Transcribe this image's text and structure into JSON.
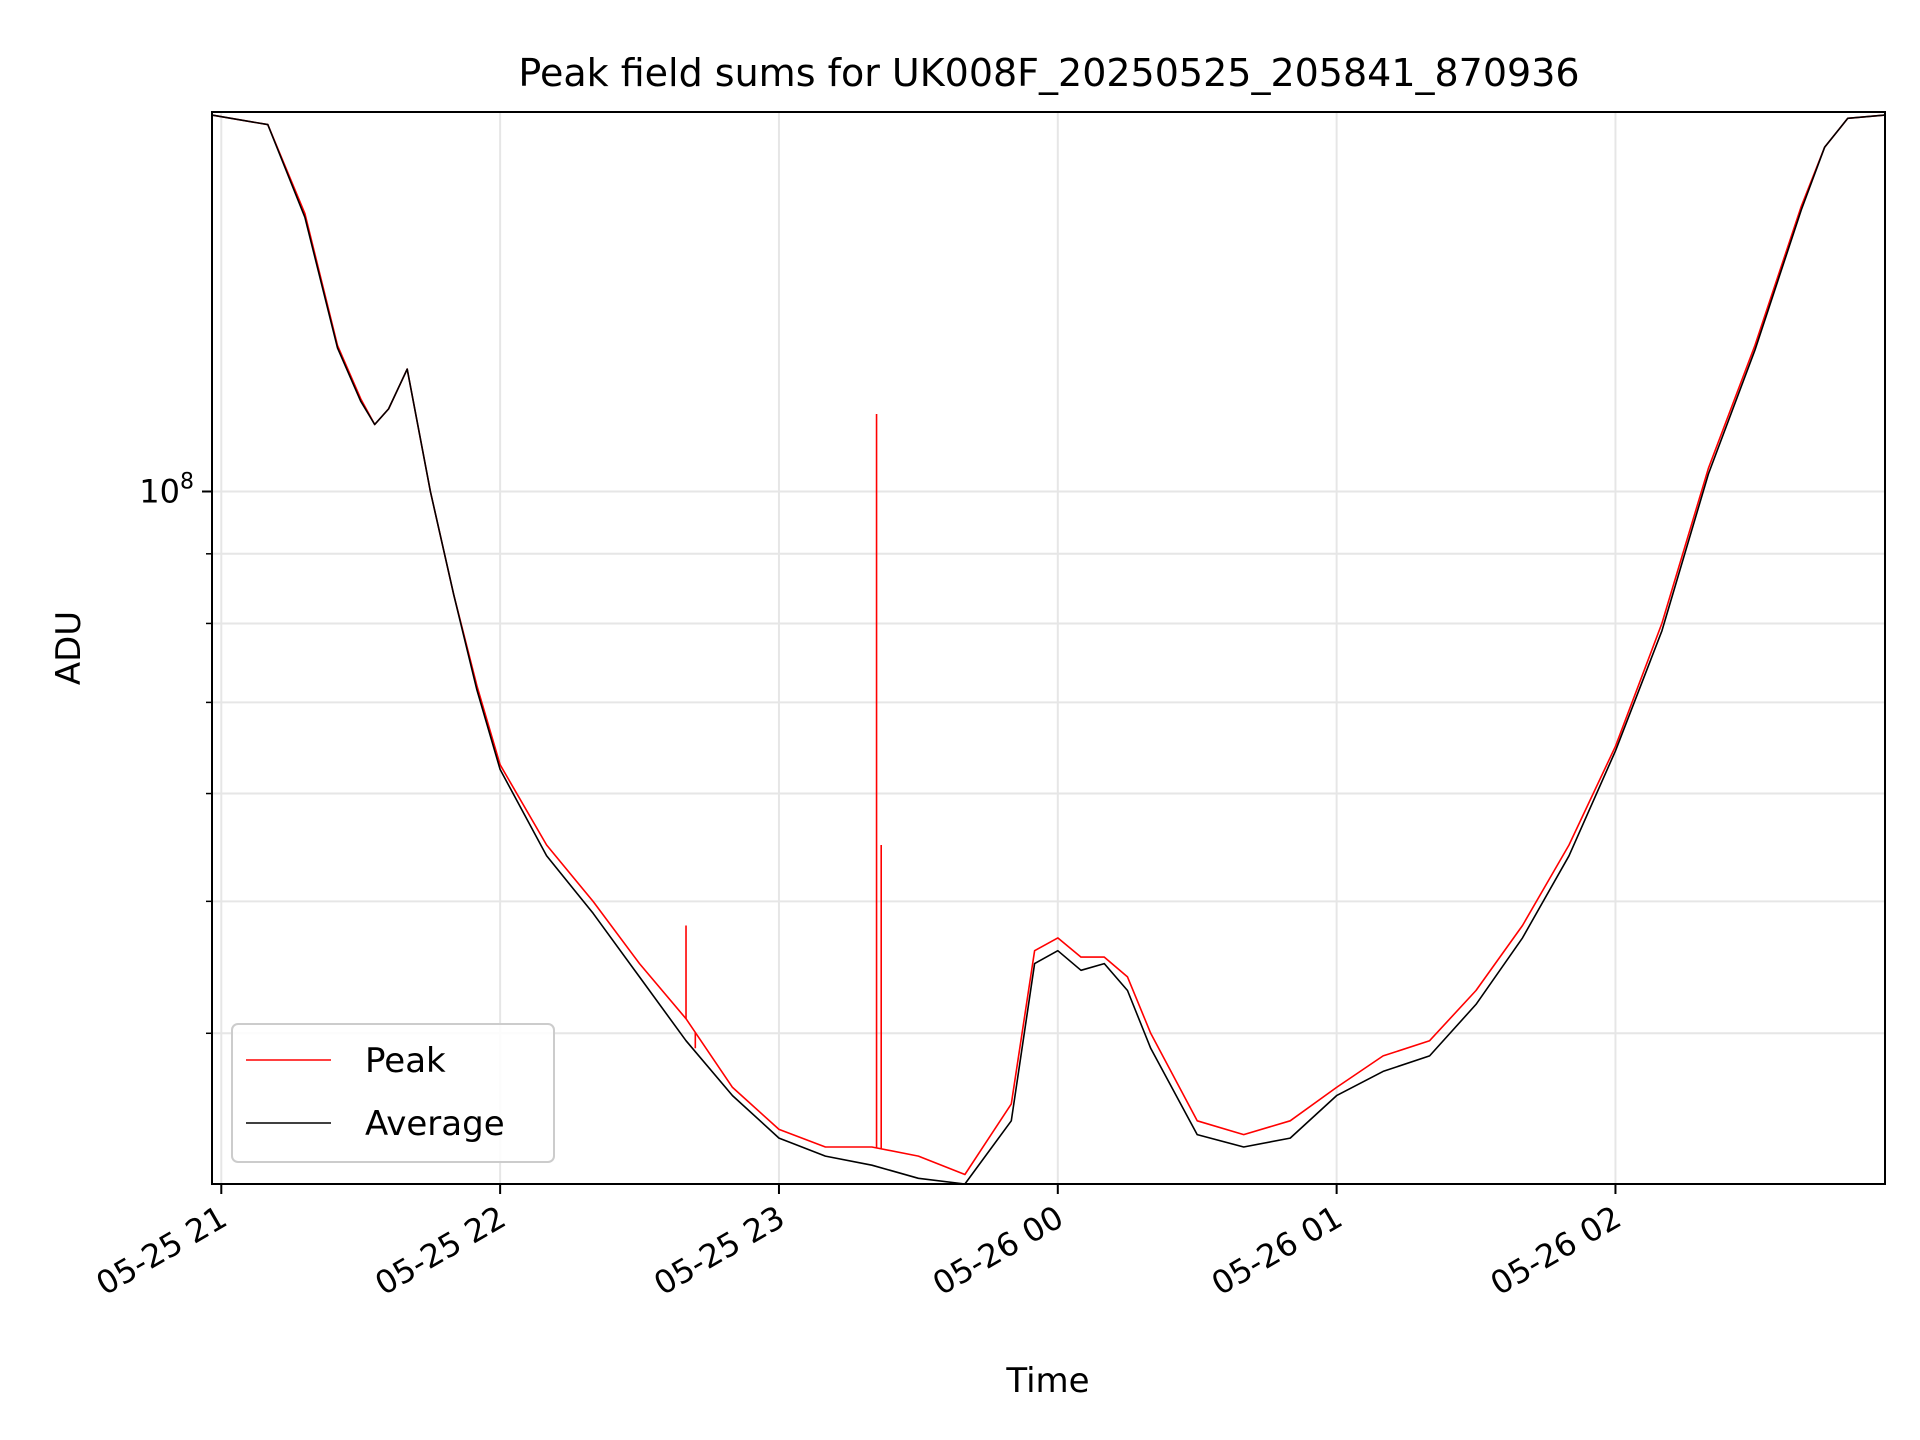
{
  "chart_data": {
    "type": "line",
    "title": "Peak field sums for UK008F_20250525_205841_870936",
    "xlabel": "Time",
    "ylabel": "ADU",
    "yscale": "log",
    "xlim": [
      "2025-05-25 20:58",
      "2025-05-26 02:58"
    ],
    "ylim": [
      31000000,
      190000000
    ],
    "x_ticks": [
      "2025-05-25 21:00",
      "2025-05-25 22:00",
      "2025-05-25 23:00",
      "2025-05-26 00:00",
      "2025-05-26 01:00",
      "2025-05-26 02:00"
    ],
    "x_tick_labels": [
      "05-25 21",
      "05-25 22",
      "05-25 23",
      "05-26 00",
      "05-26 01",
      "05-26 02"
    ],
    "y_major_tick_labels": [
      {
        "value": 100000000,
        "base": "10",
        "exp": "8"
      }
    ],
    "y_minor_ticks": [
      40000000,
      50000000,
      60000000,
      70000000,
      80000000,
      90000000,
      200000000
    ],
    "grid": true,
    "legend": {
      "position": "lower-left",
      "entries": [
        "Peak",
        "Average"
      ]
    },
    "series": [
      {
        "name": "Peak",
        "color": "#ff0000",
        "x": [
          "2025-05-25 20:58",
          "2025-05-25 21:10",
          "2025-05-25 21:18",
          "2025-05-25 21:25",
          "2025-05-25 21:30",
          "2025-05-25 21:33",
          "2025-05-25 21:36",
          "2025-05-25 21:40",
          "2025-05-25 21:45",
          "2025-05-25 21:50",
          "2025-05-25 21:55",
          "2025-05-25 22:00",
          "2025-05-25 22:10",
          "2025-05-25 22:20",
          "2025-05-25 22:30",
          "2025-05-25 22:40",
          "2025-05-25 22:50",
          "2025-05-25 23:00",
          "2025-05-25 23:10",
          "2025-05-25 23:20",
          "2025-05-25 23:30",
          "2025-05-25 23:40",
          "2025-05-25 23:50",
          "2025-05-25 23:55",
          "2025-05-26 00:00",
          "2025-05-26 00:05",
          "2025-05-26 00:10",
          "2025-05-26 00:15",
          "2025-05-26 00:20",
          "2025-05-26 00:30",
          "2025-05-26 00:40",
          "2025-05-26 00:50",
          "2025-05-26 01:00",
          "2025-05-26 01:10",
          "2025-05-26 01:20",
          "2025-05-26 01:30",
          "2025-05-26 01:40",
          "2025-05-26 01:50",
          "2025-05-26 02:00",
          "2025-05-26 02:10",
          "2025-05-26 02:20",
          "2025-05-26 02:30",
          "2025-05-26 02:40",
          "2025-05-26 02:45",
          "2025-05-26 02:50",
          "2025-05-26 02:58"
        ],
        "values": [
          189000000,
          186000000,
          160000000,
          128000000,
          117000000,
          112000000,
          115000000,
          123000000,
          100000000,
          84000000,
          72000000,
          63000000,
          55000000,
          50000000,
          45000000,
          41000000,
          36500000,
          34000000,
          33000000,
          33000000,
          32500000,
          31500000,
          35500000,
          46000000,
          47000000,
          45500000,
          45500000,
          44000000,
          40000000,
          34500000,
          33700000,
          34500000,
          36500000,
          38500000,
          39500000,
          43000000,
          48000000,
          55000000,
          65000000,
          80000000,
          104000000,
          128000000,
          162000000,
          179000000,
          188000000,
          189000000
        ],
        "spikes": [
          {
            "x": "2025-05-25 22:40",
            "value": 48000000
          },
          {
            "x": "2025-05-25 22:42",
            "value": 39000000
          },
          {
            "x": "2025-05-25 23:21",
            "value": 114000000
          },
          {
            "x": "2025-05-25 23:22",
            "value": 55000000
          }
        ]
      },
      {
        "name": "Average",
        "color": "#000000",
        "x": [
          "2025-05-25 20:58",
          "2025-05-25 21:10",
          "2025-05-25 21:18",
          "2025-05-25 21:25",
          "2025-05-25 21:30",
          "2025-05-25 21:33",
          "2025-05-25 21:36",
          "2025-05-25 21:40",
          "2025-05-25 21:45",
          "2025-05-25 21:50",
          "2025-05-25 21:55",
          "2025-05-25 22:00",
          "2025-05-25 22:10",
          "2025-05-25 22:20",
          "2025-05-25 22:30",
          "2025-05-25 22:40",
          "2025-05-25 22:50",
          "2025-05-25 23:00",
          "2025-05-25 23:10",
          "2025-05-25 23:20",
          "2025-05-25 23:30",
          "2025-05-25 23:40",
          "2025-05-25 23:50",
          "2025-05-25 23:55",
          "2025-05-26 00:00",
          "2025-05-26 00:05",
          "2025-05-26 00:10",
          "2025-05-26 00:15",
          "2025-05-26 00:20",
          "2025-05-26 00:30",
          "2025-05-26 00:40",
          "2025-05-26 00:50",
          "2025-05-26 01:00",
          "2025-05-26 01:10",
          "2025-05-26 01:20",
          "2025-05-26 01:30",
          "2025-05-26 01:40",
          "2025-05-26 01:50",
          "2025-05-26 02:00",
          "2025-05-26 02:10",
          "2025-05-26 02:20",
          "2025-05-26 02:30",
          "2025-05-26 02:40",
          "2025-05-26 02:45",
          "2025-05-26 02:50",
          "2025-05-26 02:58"
        ],
        "values": [
          189000000,
          186000000,
          159000000,
          127500000,
          116500000,
          112000000,
          115000000,
          123000000,
          100000000,
          84000000,
          71500000,
          62500000,
          54000000,
          49000000,
          44000000,
          39500000,
          36000000,
          33500000,
          32500000,
          32000000,
          31300000,
          31000000,
          34500000,
          45000000,
          46000000,
          44500000,
          45000000,
          43000000,
          39000000,
          33700000,
          33000000,
          33500000,
          36000000,
          37500000,
          38500000,
          42000000,
          47000000,
          54000000,
          64500000,
          79000000,
          103000000,
          127000000,
          161000000,
          179000000,
          188000000,
          189000000
        ]
      }
    ]
  }
}
